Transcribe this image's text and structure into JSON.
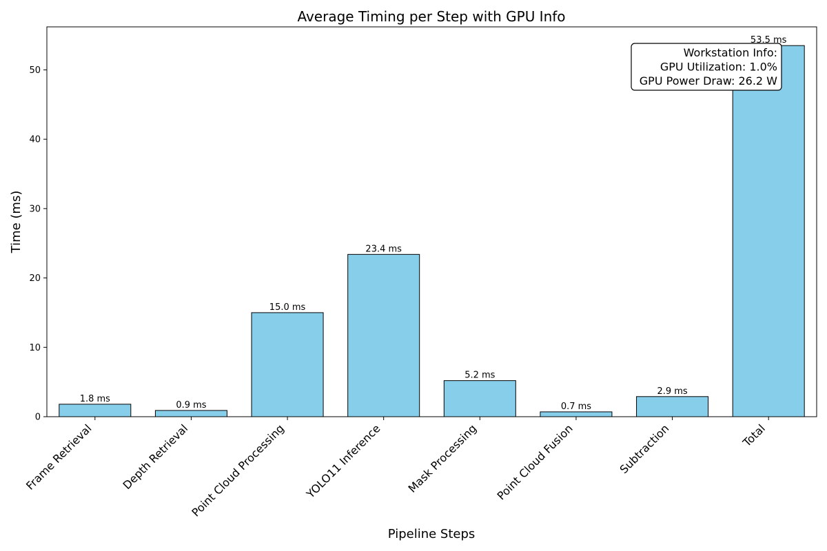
{
  "chart_data": {
    "type": "bar",
    "title": "Average Timing per Step with GPU Info",
    "xlabel": "Pipeline Steps",
    "ylabel": "Time (ms)",
    "categories": [
      "Frame Retrieval",
      "Depth Retrieval",
      "Point Cloud Processing",
      "YOLO11 Inference",
      "Mask Processing",
      "Point Cloud Fusion",
      "Subtraction",
      "Total"
    ],
    "values": [
      1.8,
      0.9,
      15.0,
      23.4,
      5.2,
      0.7,
      2.9,
      53.5
    ],
    "value_labels": [
      "1.8 ms",
      "0.9 ms",
      "15.0 ms",
      "23.4 ms",
      "5.2 ms",
      "0.7 ms",
      "2.9 ms",
      "53.5 ms"
    ],
    "ylim": [
      0,
      56.2
    ],
    "yticks": [
      0,
      10,
      20,
      30,
      40,
      50
    ],
    "bar_color": "#87ceeb",
    "bar_edge_color": "#000000",
    "grid": false,
    "legend": null
  },
  "info_box": {
    "placement": "top-right",
    "lines": [
      "Workstation Info:",
      "GPU Utilization: 1.0%",
      "GPU Power Draw: 26.2 W"
    ]
  }
}
